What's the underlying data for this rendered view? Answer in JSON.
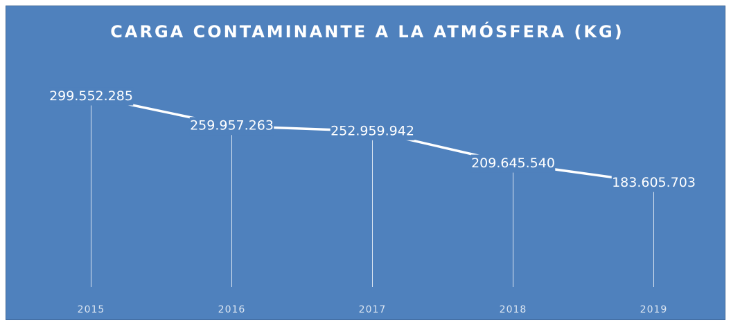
{
  "chart_data": {
    "type": "line",
    "title": "CARGA CONTAMINANTE A LA ATMÓSFERA (KG)",
    "categories": [
      "2015",
      "2016",
      "2017",
      "2018",
      "2019"
    ],
    "series": [
      {
        "color": "#ffffff",
        "values": [
          299552285,
          259957263,
          252959942,
          209645540,
          183605703
        ],
        "value_labels": [
          "299.552.285",
          "259.957.263",
          "252.959.942",
          "209.645.540",
          "183.605.703"
        ]
      }
    ],
    "ylim": [
      0,
      350000000
    ]
  }
}
